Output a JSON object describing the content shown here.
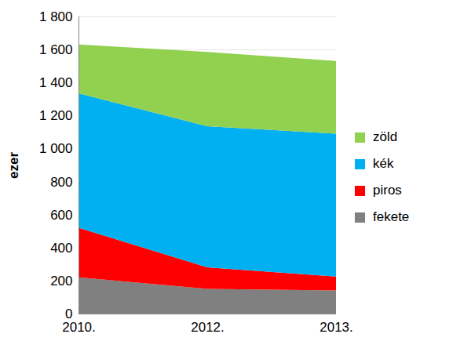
{
  "chart_data": {
    "type": "area",
    "stacked": true,
    "y_label": "ezer",
    "categories": [
      "2010.",
      "2012.",
      "2013."
    ],
    "series": [
      {
        "name": "fekete",
        "color": "#808080",
        "values": [
          220,
          150,
          140
        ]
      },
      {
        "name": "piros",
        "color": "#ff0000",
        "values": [
          300,
          130,
          85
        ]
      },
      {
        "name": "kék",
        "color": "#00b0f0",
        "values": [
          815,
          855,
          865
        ]
      },
      {
        "name": "zöld",
        "color": "#92d050",
        "values": [
          295,
          450,
          440
        ]
      }
    ],
    "ylim": [
      0,
      1800
    ],
    "yticks": [
      0,
      200,
      400,
      600,
      800,
      {
        "value": 1000,
        "label": "1 000"
      },
      {
        "value": 1200,
        "label": "1 200"
      },
      {
        "value": 1400,
        "label": "1 400"
      },
      {
        "value": 1600,
        "label": "1 600"
      },
      {
        "value": 1800,
        "label": "1 800"
      }
    ],
    "grid": true,
    "legend": "right"
  }
}
